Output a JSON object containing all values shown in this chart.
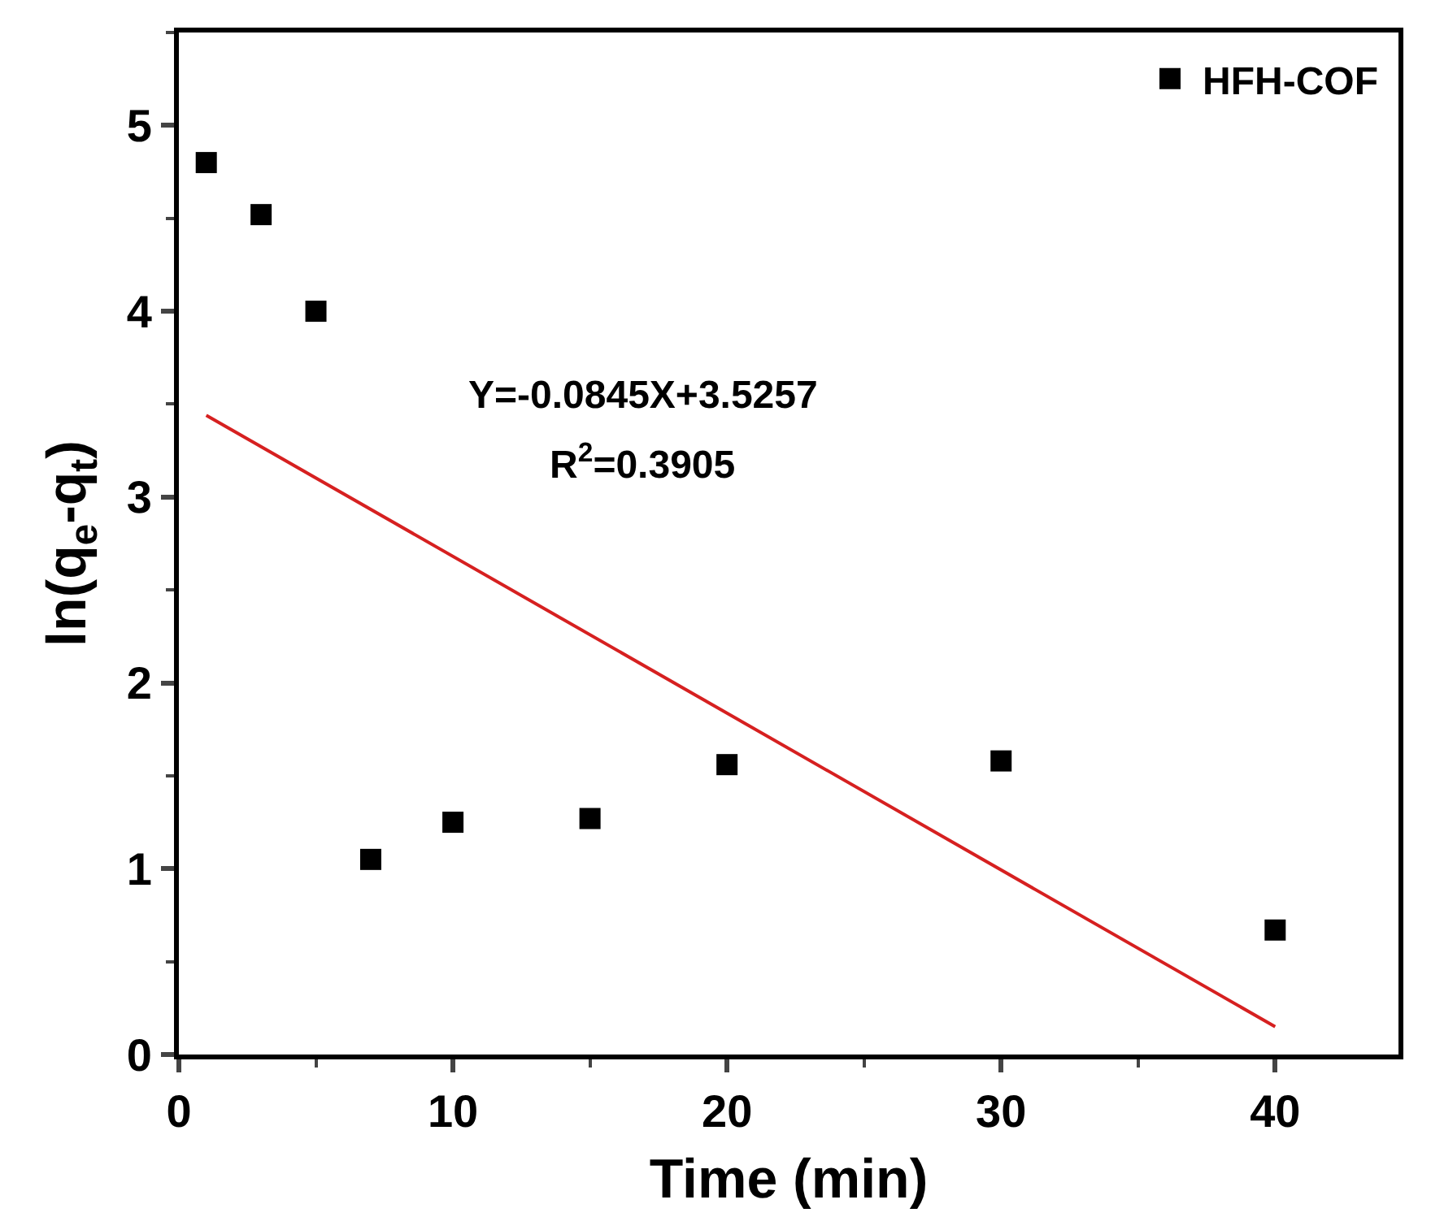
{
  "chart_data": {
    "type": "scatter",
    "xlabel": "Time (min)",
    "ylabel": "ln(q$_{e}$-q$_{t}$)",
    "xlim": [
      0,
      44.5
    ],
    "xticks": [
      0,
      10,
      20,
      30,
      40
    ],
    "ylim": [
      0,
      5.5
    ],
    "yticks": [
      0,
      1,
      2,
      3,
      4,
      5
    ],
    "legend": "top right",
    "annotations": [
      "Y=-0.0845X+3.5257",
      "R$^{2}$=0.3905"
    ],
    "series": [
      {
        "name": "HFH-COF",
        "color": "#000000",
        "marker": "square",
        "x": [
          1,
          3,
          5,
          7,
          10,
          15,
          20,
          30,
          40
        ],
        "values": [
          4.8,
          4.52,
          4.0,
          1.05,
          1.25,
          1.27,
          1.56,
          1.58,
          0.67
        ]
      },
      {
        "type": "line",
        "color": "#d62020",
        "x": [
          1,
          40
        ],
        "values": [
          3.44,
          0.15
        ]
      }
    ]
  }
}
